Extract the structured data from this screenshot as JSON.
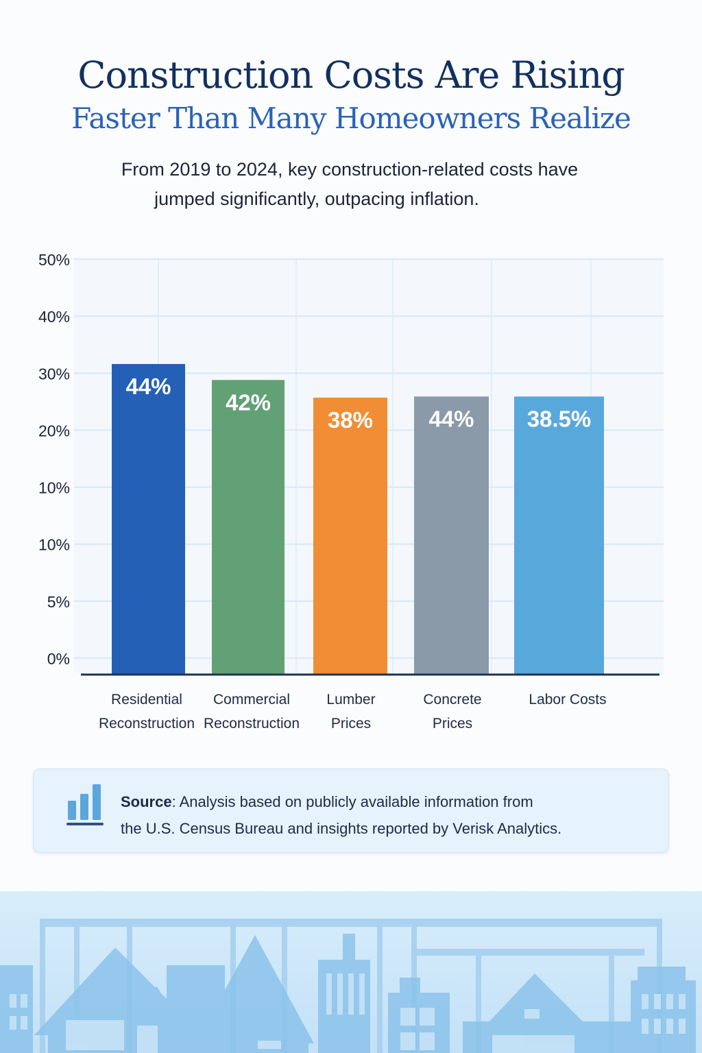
{
  "header": {
    "title_line1": "Construction Costs Are Rising",
    "title_line2": "Faster Than Many Homeowners Realize",
    "subtitle_line1": "From 2019 to 2024, key construction-related costs have",
    "subtitle_line2": "jumped significantly, outpacing inflation."
  },
  "colors": {
    "title_dark": "#12305f",
    "title_blue": "#2a62b8",
    "bar_residential": "#2460b5",
    "bar_commercial": "#62a075",
    "bar_lumber": "#f08d35",
    "bar_concrete": "#8a9aa9",
    "bar_labor": "#59a8dc",
    "grid": "#dceaf7",
    "baseline": "#1d3157"
  },
  "chart_data": {
    "type": "bar",
    "title": "",
    "xlabel": "",
    "ylabel": "",
    "y_tick_labels": [
      "50%",
      "40%",
      "30%",
      "20%",
      "10%",
      "10%",
      "5%",
      "0%"
    ],
    "grid": true,
    "legend": "none",
    "categories": [
      [
        "Residential",
        "Reconstruction"
      ],
      [
        "Commercial",
        "Reconstruction"
      ],
      [
        "Lumber",
        "Prices"
      ],
      [
        "Concrete",
        "Prices"
      ],
      [
        "Labor Costs"
      ]
    ],
    "data_labels": [
      "44%",
      "42%",
      "38%",
      "44%",
      "38.5%"
    ],
    "values": [
      44,
      42,
      38,
      44,
      38.5
    ],
    "drawn_height_in_ticks": [
      5.16,
      4.88,
      4.57,
      4.59,
      4.59
    ],
    "ylim": [
      0,
      50
    ]
  },
  "source": {
    "label": "Source",
    "text_line1": ": Analysis based on publicly available information from",
    "text_line2": "the U.S. Census Bureau and insights reported by Verisk Analytics."
  }
}
